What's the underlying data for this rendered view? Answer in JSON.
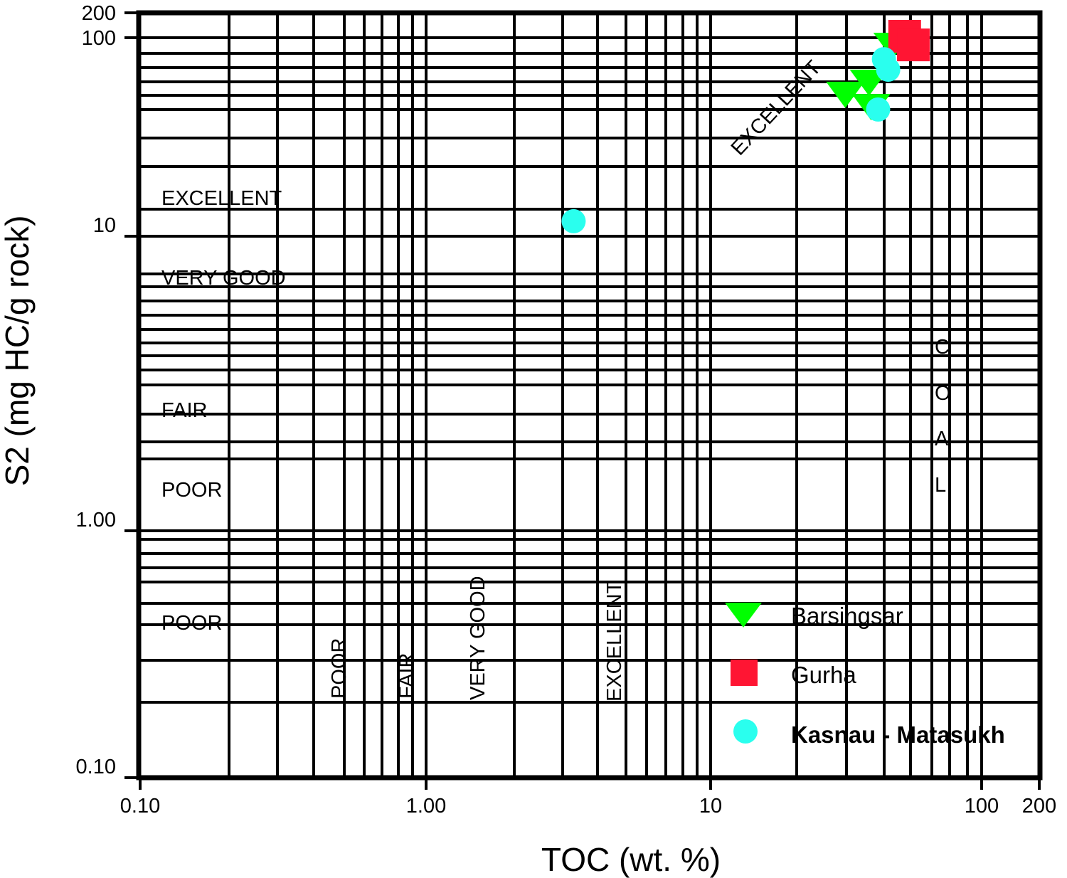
{
  "chart_data": {
    "type": "scatter",
    "title": "",
    "xlabel": "TOC (wt. %)",
    "ylabel": "S2 (mg HC/g rock)",
    "xscale": "log",
    "yscale": "log",
    "xlim": [
      0.1,
      200
    ],
    "ylim": [
      0.1,
      200
    ],
    "grid": true,
    "legend_position": "bottom-right",
    "x_ticks": [
      {
        "value": 0.1,
        "label": "0.10"
      },
      {
        "value": 1,
        "label": "1.00"
      },
      {
        "value": 10,
        "label": "10"
      },
      {
        "value": 100,
        "label": "100"
      },
      {
        "value": 200,
        "label": "200"
      }
    ],
    "y_ticks": [
      {
        "value": 0.1,
        "label": "0.10"
      },
      {
        "value": 1,
        "label": "1.00"
      },
      {
        "value": 10,
        "label": "10"
      },
      {
        "value": 100,
        "label": "100"
      },
      {
        "value": 200,
        "label": "200"
      }
    ],
    "series": [
      {
        "name": "Barsingsar",
        "marker": "triangle-down",
        "color": "#00ff00",
        "points": [
          [
            46.9,
            93.6
          ],
          [
            31.4,
            53
          ],
          [
            38.4,
            61
          ],
          [
            39.1,
            46
          ]
        ]
      },
      {
        "name": "Gurha",
        "marker": "square",
        "color": "#ff1533",
        "points": [
          [
            52,
            104
          ],
          [
            56,
            92
          ]
        ]
      },
      {
        "name": "Kasnau - Matasukh",
        "marker": "circle",
        "color": "#2affee",
        "points": [
          [
            3.3,
            11.9
          ],
          [
            43.6,
            78
          ],
          [
            45.2,
            69
          ],
          [
            41.5,
            43.5
          ]
        ]
      }
    ],
    "annotations": {
      "s2_classes": [
        "EXCELLENT",
        "VERY GOOD",
        "FAIR",
        "POOR",
        "POOR"
      ],
      "toc_classes": [
        "POOR",
        "FAIR",
        "VERY GOOD",
        "EXCELLENT"
      ],
      "diagonal": "EXCELLENT",
      "coal_letters": [
        "C",
        "O",
        "A",
        "L"
      ]
    }
  }
}
